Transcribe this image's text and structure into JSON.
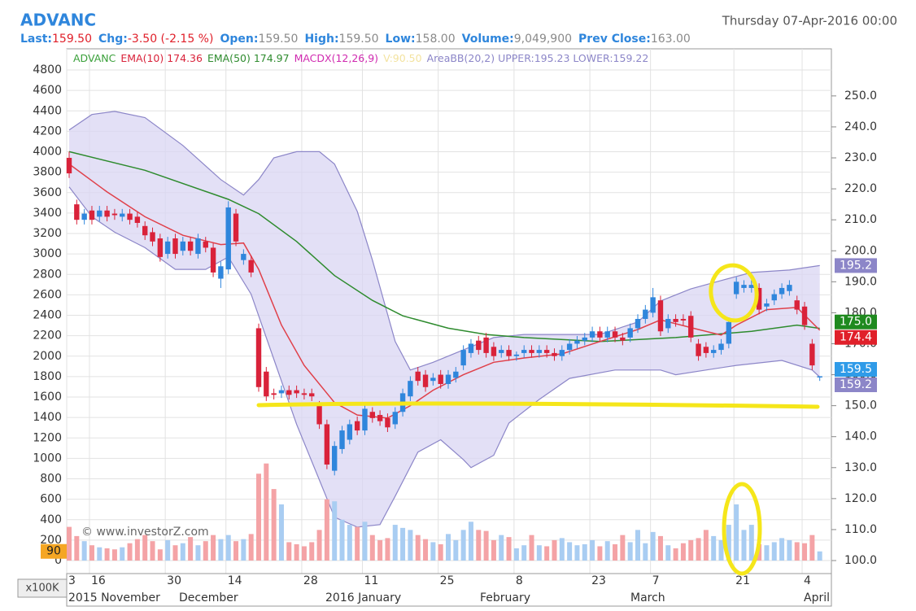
{
  "chart_data": {
    "type": "candlestick",
    "title": "ADVANC",
    "date_label": "Thursday 07-Apr-2016 00:00",
    "stats": [
      {
        "label": "Last:",
        "value": "159.50",
        "color": "#e0202a"
      },
      {
        "label": "Chg:",
        "value": "-3.50 (-2.15 %)",
        "color": "#e0202a"
      },
      {
        "label": "Open:",
        "value": "159.50",
        "color": "#8a8a8a"
      },
      {
        "label": "High:",
        "value": "159.50",
        "color": "#8a8a8a"
      },
      {
        "label": "Low:",
        "value": "158.00",
        "color": "#8a8a8a"
      },
      {
        "label": "Volume:",
        "value": "9,049,900",
        "color": "#8a8a8a"
      },
      {
        "label": "Prev Close:",
        "value": "163.00",
        "color": "#8a8a8a"
      }
    ],
    "legend": [
      {
        "text": "ADVANC",
        "color": "#3aa03a"
      },
      {
        "text": "EMA(10) 174.36",
        "color": "#d9223a"
      },
      {
        "text": "EMA(50) 174.97",
        "color": "#2e8b2e"
      },
      {
        "text": "MACDX(12,26,9)",
        "color": "#d02ab0"
      },
      {
        "text": "V:90.50",
        "color": "#f3e3a0"
      },
      {
        "text": "AreaBB(20,2) UPPER:195.23 LOWER:159.22",
        "color": "#8c86c8"
      }
    ],
    "watermark": "© www.investorZ.com",
    "volume_unit": "x100K",
    "categories": [
      "3",
      null,
      null,
      "16",
      null,
      null,
      null,
      null,
      null,
      null,
      null,
      null,
      null,
      "30",
      null,
      null,
      null,
      null,
      null,
      null,
      null,
      "14",
      null,
      null,
      null,
      null,
      null,
      null,
      null,
      null,
      null,
      "28",
      null,
      null,
      null,
      null,
      null,
      null,
      null,
      "11",
      null,
      null,
      null,
      null,
      null,
      null,
      null,
      null,
      null,
      "25",
      null,
      null,
      null,
      null,
      null,
      null,
      null,
      null,
      null,
      "8",
      null,
      null,
      null,
      null,
      null,
      null,
      null,
      null,
      null,
      "23",
      null,
      null,
      null,
      null,
      null,
      null,
      null,
      "7",
      null,
      null,
      null,
      null,
      null,
      null,
      null,
      null,
      null,
      null,
      "21",
      null,
      null,
      null,
      null,
      null,
      null,
      null,
      null,
      "4",
      null,
      null
    ],
    "month_labels": [
      "2015 November",
      "December",
      "2016 January",
      "February",
      "March",
      "April"
    ],
    "open": [
      230,
      215,
      210,
      213,
      211,
      213,
      212,
      211,
      212,
      211,
      208,
      206,
      204,
      199,
      204,
      200,
      203,
      199,
      203,
      201,
      191,
      194,
      212,
      197,
      197,
      175,
      161,
      154,
      154,
      155,
      155,
      154,
      154,
      150,
      144,
      129,
      136,
      139,
      145,
      142,
      148,
      147,
      146,
      144,
      148,
      153,
      161,
      160,
      158,
      160,
      157,
      159,
      163,
      167,
      171,
      172,
      169,
      167,
      168,
      166,
      167,
      168,
      167,
      168,
      167,
      166,
      168,
      170,
      171,
      172,
      174,
      172,
      174,
      172,
      172,
      175,
      178,
      180,
      184,
      175,
      178,
      178,
      179,
      170,
      169,
      167,
      168,
      170,
      186,
      188,
      188,
      188,
      182,
      184,
      186,
      187,
      184,
      182,
      170,
      159.5
    ],
    "high": [
      232,
      216.5,
      213.5,
      214.5,
      214.5,
      214.5,
      213.5,
      213.5,
      213.5,
      212.5,
      209.5,
      207.5,
      205.5,
      204.5,
      205.5,
      204.5,
      204.5,
      205.5,
      204.5,
      202.5,
      196.5,
      216,
      213.5,
      200.5,
      198.5,
      176.5,
      162.5,
      155.5,
      156.5,
      156.5,
      156.5,
      155.5,
      155.5,
      151.5,
      145.5,
      138.5,
      143.5,
      145.5,
      146.5,
      150.5,
      149.5,
      148.5,
      147.5,
      149.5,
      155.5,
      159.5,
      162.5,
      161.5,
      160.5,
      161.5,
      161.5,
      162.5,
      169.5,
      171.5,
      172.5,
      173.5,
      170.5,
      169.5,
      169.5,
      167.5,
      169.5,
      169.5,
      169.5,
      169.5,
      168.5,
      169.5,
      171.5,
      172.5,
      173.5,
      175.5,
      175.5,
      175.5,
      175.5,
      173.5,
      176.5,
      179.5,
      182.5,
      188,
      185.5,
      179.5,
      179.5,
      179.5,
      180.5,
      171.5,
      170.5,
      169.5,
      171.5,
      178.5,
      191.5,
      190.5,
      190.5,
      189.5,
      184.5,
      187.5,
      189.5,
      190.5,
      185.5,
      183.5,
      171.5,
      159.5
    ],
    "low": [
      223.5,
      208.5,
      208.5,
      208.5,
      209.5,
      209.5,
      210,
      209.5,
      208.5,
      207.5,
      203.5,
      201.5,
      196.5,
      197.5,
      197.5,
      198.5,
      198.5,
      197.5,
      199.5,
      191.5,
      188,
      192.5,
      201.5,
      195.5,
      191.5,
      154.5,
      151.5,
      152,
      152.5,
      152,
      152.5,
      152,
      151.5,
      142.5,
      129.5,
      127.5,
      134.5,
      137.5,
      140.5,
      140.5,
      144.5,
      143.5,
      141.5,
      142.5,
      146.5,
      151.5,
      156.5,
      154.5,
      156.5,
      155.5,
      155.5,
      157.5,
      161.5,
      165.5,
      166.5,
      165.5,
      164.5,
      165.5,
      164.5,
      164.5,
      165.5,
      165.5,
      165.5,
      165.5,
      164.5,
      164.5,
      166.5,
      168.5,
      169.5,
      170.5,
      170.5,
      170.5,
      170.5,
      169.5,
      170.5,
      173.5,
      176.5,
      178.5,
      172.5,
      173.5,
      175.5,
      176,
      170.5,
      164.5,
      165.5,
      165.5,
      166.5,
      168.5,
      184.5,
      186.5,
      186.5,
      179.5,
      180.5,
      182.5,
      184.5,
      185.5,
      179.5,
      174.5,
      161.5,
      158
    ],
    "close": [
      225,
      210,
      212,
      210,
      213,
      211,
      211.5,
      212,
      210,
      209,
      205,
      203,
      198,
      203,
      199,
      203,
      200,
      204,
      201,
      193,
      195,
      214,
      203,
      199,
      193,
      156,
      153,
      153.5,
      155,
      153.5,
      154,
      153.5,
      153,
      144,
      131,
      137,
      142,
      144,
      142,
      149,
      146,
      145,
      143,
      148,
      154,
      158,
      158,
      156,
      159,
      157,
      160,
      161,
      168,
      170,
      168,
      167,
      166,
      168,
      166,
      166.5,
      168,
      167,
      168,
      167,
      166,
      168,
      170,
      171,
      172,
      174,
      172,
      174,
      172,
      171,
      175,
      178,
      181,
      185,
      174,
      178,
      177,
      177.5,
      172,
      166,
      167,
      168,
      170,
      177,
      190,
      189,
      189,
      181,
      183,
      186,
      188,
      189,
      181,
      176,
      163,
      159.5
    ],
    "up_color": "#2f86dc",
    "down_color": "#d9223a",
    "volume": {
      "axis": "y2",
      "up_color": "#a9cdf2",
      "down_color": "#f4a3a6",
      "values": [
        330,
        240,
        190,
        150,
        130,
        120,
        110,
        130,
        170,
        210,
        250,
        190,
        110,
        200,
        150,
        170,
        230,
        150,
        190,
        250,
        210,
        250,
        190,
        210,
        260,
        850,
        950,
        700,
        550,
        180,
        160,
        140,
        180,
        300,
        600,
        580,
        400,
        350,
        330,
        380,
        250,
        200,
        220,
        350,
        320,
        300,
        250,
        210,
        180,
        160,
        260,
        200,
        300,
        380,
        300,
        290,
        200,
        250,
        230,
        120,
        150,
        250,
        150,
        140,
        200,
        220,
        180,
        150,
        160,
        200,
        140,
        190,
        160,
        250,
        180,
        300,
        170,
        280,
        240,
        150,
        120,
        170,
        200,
        220,
        300,
        240,
        200,
        350,
        550,
        300,
        350,
        160,
        150,
        180,
        220,
        200,
        180,
        170,
        250,
        90
      ]
    },
    "lines": [
      {
        "color": "#2e8b2e",
        "x": [
          0,
          10,
          21,
          25,
          30,
          35,
          40,
          44,
          50,
          55,
          60,
          70,
          80,
          90,
          96,
          99
        ],
        "values": [
          232,
          226,
          216.6,
          212,
          203,
          192,
          184,
          179,
          175,
          173,
          172,
          170.7,
          172,
          174,
          176,
          174.97
        ]
      },
      {
        "color": "#e0404a",
        "x": [
          0,
          5,
          10,
          15,
          20,
          23,
          25,
          28,
          31,
          35,
          38,
          42,
          45,
          48,
          52,
          56,
          60,
          65,
          70,
          75,
          78,
          83,
          86,
          88,
          92,
          96,
          99
        ],
        "values": [
          228,
          219,
          211,
          205,
          202,
          202.5,
          194,
          176,
          163,
          151,
          147,
          146,
          150,
          155,
          160,
          164,
          165.4,
          166.7,
          170.7,
          174.6,
          177.7,
          174.6,
          172.8,
          176,
          181,
          181.7,
          174.36
        ]
      }
    ],
    "band": {
      "color": "#8c86c8",
      "fill": "#d9d6f3",
      "upper": {
        "x": [
          0,
          3,
          6,
          10,
          15,
          20,
          23,
          25,
          27,
          30,
          33,
          35,
          38,
          40,
          43,
          45,
          48,
          52,
          56,
          60,
          66,
          70,
          75,
          78,
          82,
          86,
          90,
          95,
          99
        ],
        "values": [
          239,
          244,
          245,
          243,
          234,
          223,
          218,
          223,
          230,
          232,
          232,
          228,
          212.7,
          197,
          170.7,
          161.5,
          164,
          168,
          172,
          173,
          173,
          173,
          177,
          183.8,
          187.7,
          190.4,
          193,
          193.8,
          195.23
        ]
      },
      "lower": {
        "x": [
          0,
          3,
          6,
          10,
          14,
          18,
          21,
          24,
          27,
          30,
          33,
          35,
          38,
          41,
          43,
          46,
          49,
          52,
          53,
          56,
          58,
          62,
          66,
          72,
          78,
          80,
          84,
          88,
          94,
          98,
          99
        ],
        "values": [
          220.6,
          211,
          206,
          201,
          194,
          194,
          198,
          186,
          165,
          144,
          126,
          114,
          110.8,
          111.6,
          120.8,
          135,
          139,
          132.6,
          130,
          134,
          144.4,
          152,
          158.8,
          161.5,
          161.5,
          160,
          161.5,
          163,
          164.6,
          161.5,
          159.22
        ]
      }
    },
    "price_tags": [
      {
        "label": "195.2",
        "value": 195.23,
        "color": "#8c86c8"
      },
      {
        "label": "175.0",
        "value": 174.97,
        "color": "#1f8a1f"
      },
      {
        "label": "174.4",
        "value": 174.36,
        "color": "#e0202a"
      },
      {
        "label": "159.5",
        "value": 159.5,
        "color": "#2f9be8"
      },
      {
        "label": "159.2",
        "value": 159.22,
        "color": "#8c86c8"
      }
    ],
    "volume_tag": {
      "label": "90",
      "value": 90,
      "color": "#f5a623"
    },
    "ylim": [
      95.8,
      265.2
    ],
    "yticks": [
      {
        "value": 100,
        "label": "100.0"
      },
      {
        "value": 110,
        "label": "110.0"
      },
      {
        "value": 120,
        "label": "120.0"
      },
      {
        "value": 130,
        "label": "130.0"
      },
      {
        "value": 140,
        "label": "140.0"
      },
      {
        "value": 150,
        "label": "150.0"
      },
      {
        "value": 160,
        "label": "160.0"
      },
      {
        "value": 170,
        "label": "170.0"
      },
      {
        "value": 180,
        "label": "180.0"
      },
      {
        "value": 190,
        "label": "190.0"
      },
      {
        "value": 200,
        "label": "200.0"
      },
      {
        "value": 210,
        "label": "210.0"
      },
      {
        "value": 220,
        "label": "220.0"
      },
      {
        "value": 230,
        "label": "230.0"
      },
      {
        "value": 240,
        "label": "240.0"
      },
      {
        "value": 250,
        "label": "250.0"
      }
    ],
    "y2lim": [
      -127,
      5007
    ],
    "y2ticks": [
      0,
      200,
      400,
      600,
      800,
      1000,
      1200,
      1400,
      1600,
      1800,
      2000,
      2200,
      2400,
      2600,
      2800,
      3000,
      3200,
      3400,
      3600,
      3800,
      4000,
      4200,
      4400,
      4600,
      4800
    ],
    "grid": true
  }
}
